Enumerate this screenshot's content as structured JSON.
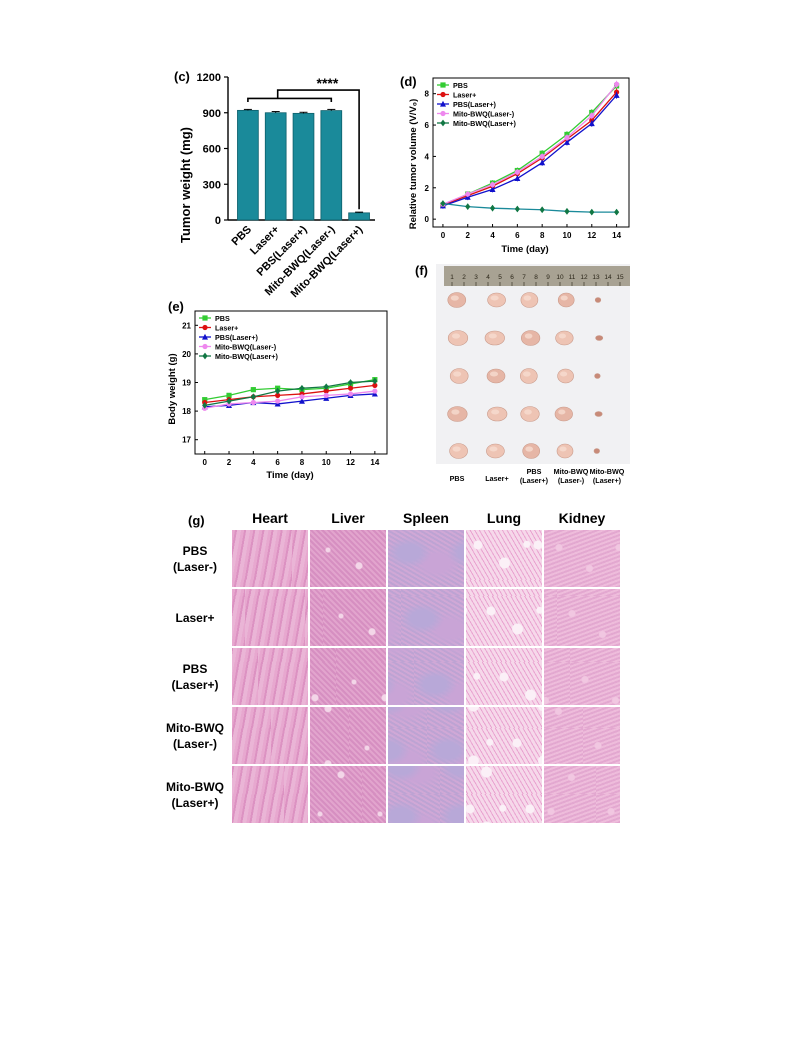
{
  "panels": {
    "c": "(c)",
    "d": "(d)",
    "e": "(e)",
    "f": "(f)",
    "g": "(g)"
  },
  "chart_data": [
    {
      "id": "c",
      "type": "bar",
      "categories": [
        "PBS",
        "Laser+",
        "PBS(Laser+)",
        "Mito-BWQ(Laser-)",
        "Mito-BWQ(Laser+)"
      ],
      "values": [
        920,
        900,
        895,
        918,
        60
      ],
      "errors": [
        8,
        10,
        9,
        10,
        6
      ],
      "ylabel": "Tumor weight (mg)",
      "yticks": [
        0,
        300,
        600,
        900,
        1200
      ],
      "ylim": [
        0,
        1200
      ],
      "significance": "****",
      "bar_color": "#1a8a9a"
    },
    {
      "id": "d",
      "type": "line",
      "x": [
        0,
        2,
        4,
        6,
        8,
        10,
        12,
        14
      ],
      "xlabel": "Time (day)",
      "ylabel": "Relative tumor volume (V/V₀)",
      "yticks": [
        0,
        2,
        4,
        6,
        8
      ],
      "xticks": [
        0,
        2,
        4,
        6,
        8,
        10,
        12,
        14
      ],
      "ylim": [
        -0.5,
        9
      ],
      "xlim": [
        -0.8,
        15
      ],
      "legend_position": "top-left",
      "series": [
        {
          "name": "PBS",
          "color": "#33cc33",
          "marker": "square",
          "values": [
            0.9,
            1.6,
            2.3,
            3.1,
            4.2,
            5.4,
            6.8,
            8.5
          ]
        },
        {
          "name": "Laser+",
          "color": "#dd1111",
          "marker": "circle",
          "values": [
            0.9,
            1.5,
            2.1,
            2.9,
            3.9,
            5.1,
            6.3,
            8.1
          ]
        },
        {
          "name": "PBS(Laser+)",
          "color": "#1111cc",
          "marker": "triangle",
          "values": [
            0.85,
            1.4,
            1.9,
            2.6,
            3.6,
            4.9,
            6.1,
            7.9
          ]
        },
        {
          "name": "Mito-BWQ(Laser-)",
          "color": "#ee88ee",
          "marker": "circle",
          "values": [
            0.95,
            1.6,
            2.2,
            3.0,
            4.0,
            5.2,
            6.6,
            8.6
          ]
        },
        {
          "name": "Mito-BWQ(Laser+)",
          "color": "#117744",
          "marker": "diamond",
          "values": [
            1.0,
            0.8,
            0.7,
            0.65,
            0.6,
            0.5,
            0.45,
            0.45
          ]
        }
      ],
      "line_color_last": "#1a8a9a"
    },
    {
      "id": "e",
      "type": "line",
      "x": [
        0,
        2,
        4,
        6,
        8,
        10,
        12,
        14
      ],
      "xlabel": "Time (day)",
      "ylabel": "Body weight (g)",
      "yticks": [
        17,
        18,
        19,
        20,
        21
      ],
      "xticks": [
        0,
        2,
        4,
        6,
        8,
        10,
        12,
        14
      ],
      "ylim": [
        16.5,
        21.5
      ],
      "xlim": [
        -0.8,
        15
      ],
      "legend_position": "top-left",
      "series": [
        {
          "name": "PBS",
          "color": "#33cc33",
          "marker": "square",
          "values": [
            18.4,
            18.55,
            18.75,
            18.8,
            18.75,
            18.8,
            18.95,
            19.1
          ]
        },
        {
          "name": "Laser+",
          "color": "#dd1111",
          "marker": "circle",
          "values": [
            18.3,
            18.4,
            18.5,
            18.55,
            18.6,
            18.7,
            18.8,
            18.9
          ]
        },
        {
          "name": "PBS(Laser+)",
          "color": "#1111cc",
          "marker": "triangle",
          "values": [
            18.15,
            18.2,
            18.3,
            18.25,
            18.35,
            18.45,
            18.55,
            18.6
          ]
        },
        {
          "name": "Mito-BWQ(Laser-)",
          "color": "#ee88ee",
          "marker": "circle",
          "values": [
            18.1,
            18.25,
            18.3,
            18.35,
            18.5,
            18.55,
            18.6,
            18.7
          ]
        },
        {
          "name": "Mito-BWQ(Laser+)",
          "color": "#117744",
          "marker": "diamond",
          "values": [
            18.2,
            18.35,
            18.5,
            18.7,
            18.8,
            18.85,
            19.0,
            19.05
          ]
        }
      ]
    }
  ],
  "photo_f": {
    "ruler_numbers": [
      "1",
      "2",
      "3",
      "4",
      "5",
      "6",
      "7",
      "8",
      "9",
      "10",
      "11",
      "12",
      "13",
      "14",
      "15"
    ],
    "columns": [
      "PBS",
      "Laser+",
      "PBS\n(Laser+)",
      "Mito-BWQ\n(Laser-)",
      "Mito-BWQ\n(Laser+)"
    ],
    "column_lines": [
      [
        "PBS"
      ],
      [
        "Laser+"
      ],
      [
        "PBS",
        "(Laser+)"
      ],
      [
        "Mito-BWQ",
        "(Laser-)"
      ],
      [
        "Mito-BWQ",
        "(Laser+)"
      ]
    ]
  },
  "histology_g": {
    "columns": [
      "Heart",
      "Liver",
      "Spleen",
      "Lung",
      "Kidney"
    ],
    "rows": [
      {
        "line1": "PBS",
        "line2": "(Laser-)"
      },
      {
        "line1": "Laser+",
        "line2": ""
      },
      {
        "line1": "PBS",
        "line2": "(Laser+)"
      },
      {
        "line1": "Mito-BWQ",
        "line2": "(Laser-)"
      },
      {
        "line1": "Mito-BWQ",
        "line2": "(Laser+)"
      }
    ]
  }
}
